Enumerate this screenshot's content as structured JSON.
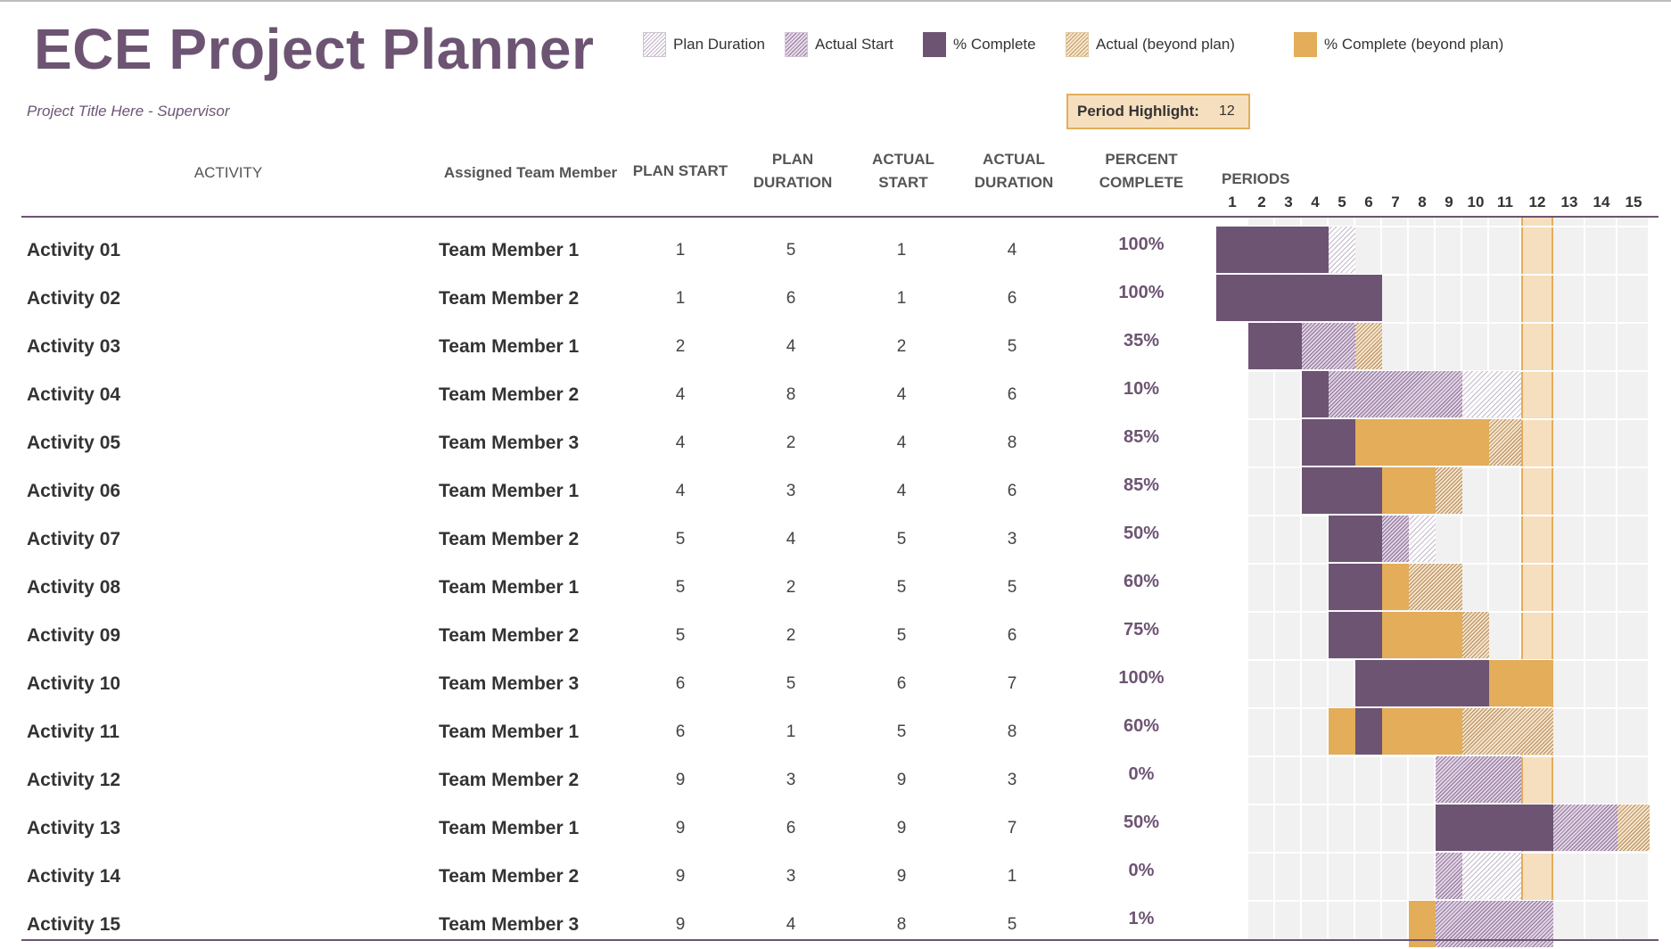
{
  "title": "ECE Project Planner",
  "subtitle": "Project Title Here - Supervisor",
  "legend": {
    "plan_duration": "Plan Duration",
    "actual_start": "Actual Start",
    "pct_complete": "% Complete",
    "actual_beyond": "Actual (beyond plan)",
    "pct_beyond": "% Complete (beyond plan)"
  },
  "period_highlight": {
    "label": "Period Highlight:",
    "value": 12
  },
  "headers": {
    "activity": "ACTIVITY",
    "member": "Assigned Team Member",
    "plan_start": "PLAN START",
    "plan_duration_1": "PLAN",
    "plan_duration_2": "DURATION",
    "actual_start_1": "ACTUAL",
    "actual_start_2": "START",
    "actual_duration_1": "ACTUAL",
    "actual_duration_2": "DURATION",
    "percent_1": "PERCENT",
    "percent_2": "COMPLETE",
    "periods": "PERIODS"
  },
  "periods": [
    "1",
    "2",
    "3",
    "4",
    "5",
    "6",
    "7",
    "8",
    "9",
    "10",
    "11",
    "12",
    "13",
    "14",
    "15"
  ],
  "colors": {
    "brand_purple": "#6d5473",
    "orange": "#e3ad5a",
    "highlight_bg": "#f6dfbe"
  },
  "rows": [
    {
      "activity": "Activity 01",
      "member": "Team Member 1",
      "plan_start": "1",
      "plan_duration": "5",
      "actual_start": "1",
      "actual_duration": "4",
      "percent": "100%",
      "pct": 100
    },
    {
      "activity": "Activity 02",
      "member": "Team Member 2",
      "plan_start": "1",
      "plan_duration": "6",
      "actual_start": "1",
      "actual_duration": "6",
      "percent": "100%",
      "pct": 100
    },
    {
      "activity": "Activity 03",
      "member": "Team Member 1",
      "plan_start": "2",
      "plan_duration": "4",
      "actual_start": "2",
      "actual_duration": "5",
      "percent": "35%",
      "pct": 35
    },
    {
      "activity": "Activity 04",
      "member": "Team Member 2",
      "plan_start": "4",
      "plan_duration": "8",
      "actual_start": "4",
      "actual_duration": "6",
      "percent": "10%",
      "pct": 10
    },
    {
      "activity": "Activity 05",
      "member": "Team Member 3",
      "plan_start": "4",
      "plan_duration": "2",
      "actual_start": "4",
      "actual_duration": "8",
      "percent": "85%",
      "pct": 85
    },
    {
      "activity": "Activity 06",
      "member": "Team Member 1",
      "plan_start": "4",
      "plan_duration": "3",
      "actual_start": "4",
      "actual_duration": "6",
      "percent": "85%",
      "pct": 85
    },
    {
      "activity": "Activity 07",
      "member": "Team Member 2",
      "plan_start": "5",
      "plan_duration": "4",
      "actual_start": "5",
      "actual_duration": "3",
      "percent": "50%",
      "pct": 50
    },
    {
      "activity": "Activity 08",
      "member": "Team Member 1",
      "plan_start": "5",
      "plan_duration": "2",
      "actual_start": "5",
      "actual_duration": "5",
      "percent": "60%",
      "pct": 60
    },
    {
      "activity": "Activity 09",
      "member": "Team Member 2",
      "plan_start": "5",
      "plan_duration": "2",
      "actual_start": "5",
      "actual_duration": "6",
      "percent": "75%",
      "pct": 75
    },
    {
      "activity": "Activity 10",
      "member": "Team Member 3",
      "plan_start": "6",
      "plan_duration": "5",
      "actual_start": "6",
      "actual_duration": "7",
      "percent": "100%",
      "pct": 100
    },
    {
      "activity": "Activity 11",
      "member": "Team Member 1",
      "plan_start": "6",
      "plan_duration": "1",
      "actual_start": "5",
      "actual_duration": "8",
      "percent": "60%",
      "pct": 60
    },
    {
      "activity": "Activity 12",
      "member": "Team Member 2",
      "plan_start": "9",
      "plan_duration": "3",
      "actual_start": "9",
      "actual_duration": "3",
      "percent": "0%",
      "pct": 0
    },
    {
      "activity": "Activity 13",
      "member": "Team Member 1",
      "plan_start": "9",
      "plan_duration": "6",
      "actual_start": "9",
      "actual_duration": "7",
      "percent": "50%",
      "pct": 50
    },
    {
      "activity": "Activity 14",
      "member": "Team Member 2",
      "plan_start": "9",
      "plan_duration": "3",
      "actual_start": "9",
      "actual_duration": "1",
      "percent": "0%",
      "pct": 0
    },
    {
      "activity": "Activity 15",
      "member": "Team Member 3",
      "plan_start": "9",
      "plan_duration": "4",
      "actual_start": "8",
      "actual_duration": "5",
      "percent": "1%",
      "pct": 1
    }
  ]
}
